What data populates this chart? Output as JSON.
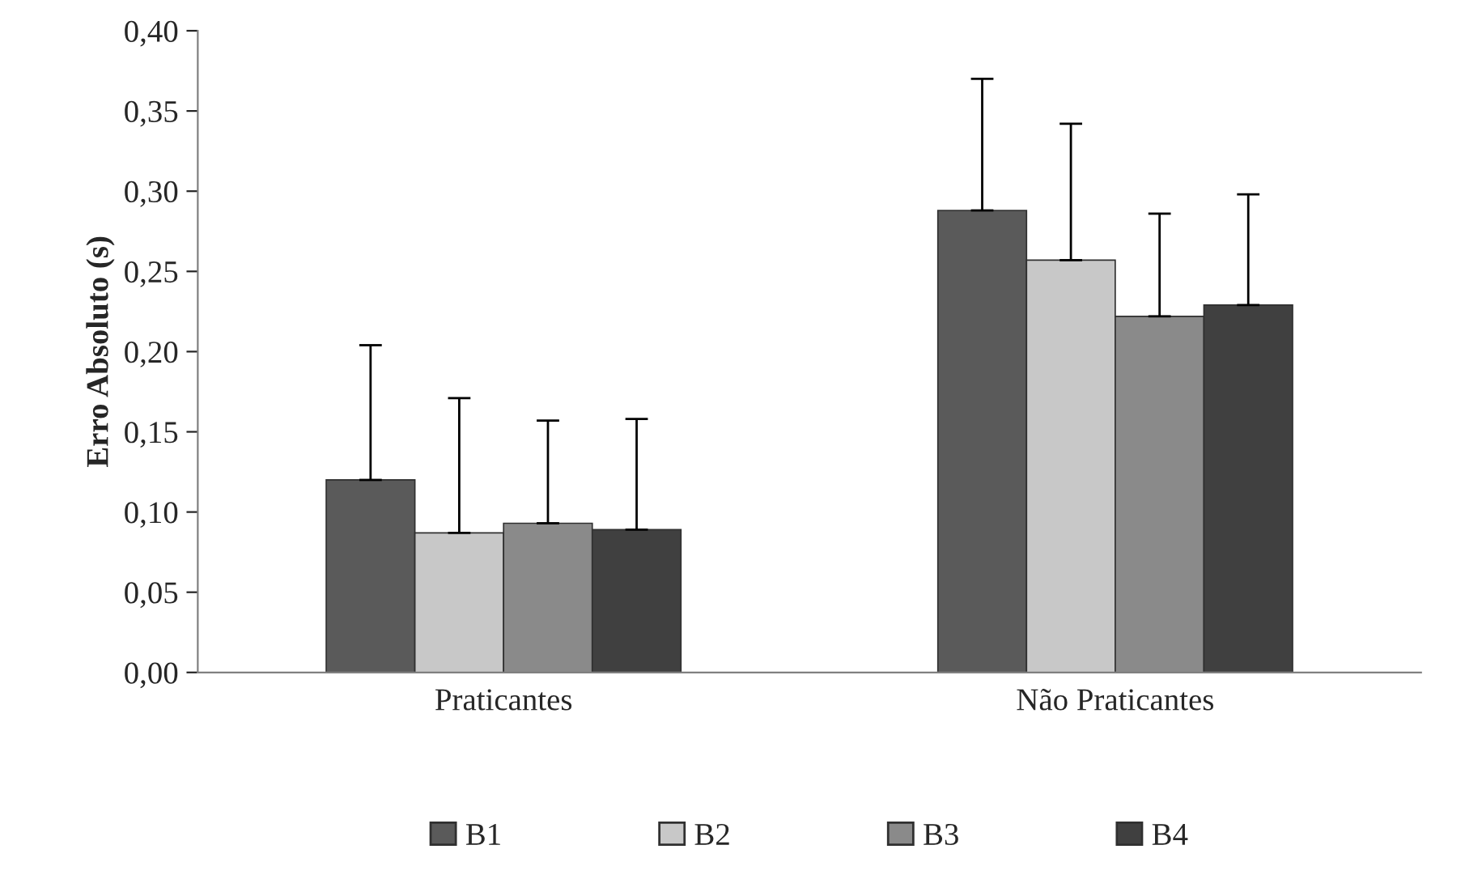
{
  "chart_data": {
    "type": "bar",
    "ylabel": "Erro Absoluto (s)",
    "categories": [
      "Praticantes",
      "Não Praticantes"
    ],
    "series": [
      {
        "name": "B1",
        "color": "#5a5a5a",
        "values": [
          0.12,
          0.288
        ],
        "errors": [
          [
            0.12,
            0.204
          ],
          [
            0.288,
            0.37
          ]
        ]
      },
      {
        "name": "B2",
        "color": "#c8c8c8",
        "values": [
          0.087,
          0.257
        ],
        "errors": [
          [
            0.087,
            0.171
          ],
          [
            0.257,
            0.342
          ]
        ]
      },
      {
        "name": "B3",
        "color": "#8a8a8a",
        "values": [
          0.093,
          0.222
        ],
        "errors": [
          [
            0.093,
            0.157
          ],
          [
            0.222,
            0.286
          ]
        ]
      },
      {
        "name": "B4",
        "color": "#404040",
        "values": [
          0.089,
          0.229
        ],
        "errors": [
          [
            0.089,
            0.158
          ],
          [
            0.229,
            0.298
          ]
        ]
      }
    ],
    "ylim": [
      0,
      0.4
    ],
    "yticks": [
      {
        "value": 0,
        "label": "0,00"
      },
      {
        "value": 0.05,
        "label": "0,05"
      },
      {
        "value": 0.1,
        "label": "0,10"
      },
      {
        "value": 0.15,
        "label": "0,15"
      },
      {
        "value": 0.2,
        "label": "0,20"
      },
      {
        "value": 0.25,
        "label": "0,25"
      },
      {
        "value": 0.3,
        "label": "0,30"
      },
      {
        "value": 0.35,
        "label": "0,35"
      },
      {
        "value": 0.4,
        "label": "0,40"
      }
    ],
    "grid": false,
    "legend": "bottom"
  }
}
